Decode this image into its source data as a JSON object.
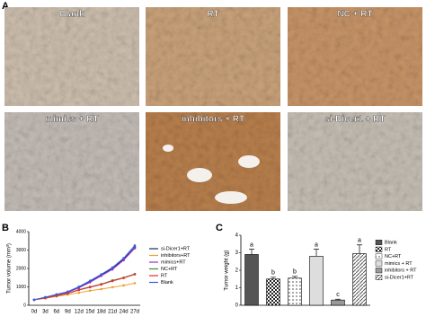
{
  "panel_a": {
    "label": "A",
    "images": [
      {
        "label": "Blank",
        "color": "#cdbfae"
      },
      {
        "label": "RT",
        "color": "#c9a27a"
      },
      {
        "label": "NC + RT",
        "color": "#c89467"
      },
      {
        "label": "mimics + RT",
        "color": "#c3bcb7"
      },
      {
        "label": "inhibitors + RT",
        "color": "#b97f4c"
      },
      {
        "label": "si-Dicer1 + RT",
        "color": "#c6bfb5"
      }
    ]
  },
  "chart_data": [
    {
      "type": "line",
      "panel_label": "B",
      "y_label": "Tumor volume (mm³)",
      "categories": [
        "0d",
        "3d",
        "6d",
        "9d",
        "12d",
        "15d",
        "18d",
        "21d",
        "24d",
        "27d"
      ],
      "ylim": [
        0,
        4000
      ],
      "yticks": [
        0,
        1000,
        2000,
        3000,
        4000
      ],
      "series": [
        {
          "name": "si-Dicer1+RT",
          "color": "#1f2a6b",
          "values": [
            300,
            430,
            580,
            720,
            980,
            1300,
            1650,
            2000,
            2500,
            3150
          ]
        },
        {
          "name": "inhibitors+RT",
          "color": "#f0a030",
          "values": [
            300,
            380,
            480,
            580,
            680,
            790,
            880,
            980,
            1080,
            1200
          ]
        },
        {
          "name": "mimics+RT",
          "color": "#9b30c0",
          "values": [
            300,
            420,
            570,
            700,
            950,
            1250,
            1600,
            1950,
            2450,
            3100
          ]
        },
        {
          "name": "NC+RT",
          "color": "#3a8a3a",
          "values": [
            300,
            400,
            520,
            650,
            850,
            1000,
            1150,
            1350,
            1500,
            1700
          ]
        },
        {
          "name": "RT",
          "color": "#e03030",
          "values": [
            300,
            390,
            510,
            640,
            830,
            980,
            1130,
            1320,
            1480,
            1680
          ]
        },
        {
          "name": "Blank",
          "color": "#3060e0",
          "values": [
            300,
            440,
            590,
            740,
            1010,
            1330,
            1680,
            2050,
            2560,
            3250
          ]
        }
      ]
    },
    {
      "type": "bar",
      "panel_label": "C",
      "y_label": "Tumor weight (g)",
      "categories": [
        "Blank",
        "RT",
        "NC+RT",
        "mimics + RT",
        "inhibitors + RT",
        "si-Dicer1+RT"
      ],
      "values": [
        2.9,
        1.5,
        1.55,
        2.8,
        0.3,
        2.95
      ],
      "errors": [
        0.3,
        0.1,
        0.1,
        0.4,
        0.05,
        0.5
      ],
      "annotations": [
        "a",
        "b",
        "b",
        "a",
        "c",
        "a"
      ],
      "patterns": [
        "solid",
        "checker",
        "dots",
        "blank",
        "solid",
        "hatch"
      ],
      "colors": [
        "#555555",
        "#222222",
        "#444444",
        "#dddddd",
        "#999999",
        "#555555"
      ],
      "ylim": [
        0,
        4
      ],
      "yticks": [
        0,
        1,
        2,
        3,
        4
      ]
    }
  ]
}
